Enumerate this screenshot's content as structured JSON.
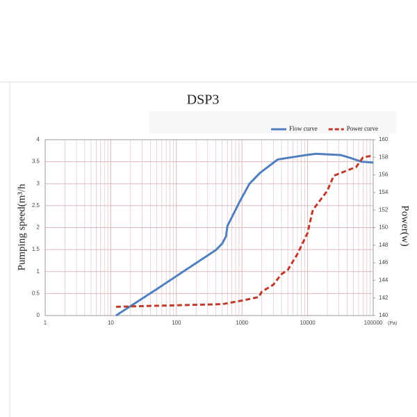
{
  "chart_data": {
    "type": "line",
    "title": "DSP3",
    "y_label": "Pumping speed(m³/h",
    "y2_label": "Power(w)",
    "x_unit": "(Pa)",
    "x_scale": "log",
    "grid": true,
    "grid_color": "#d9b8b8",
    "legend": "top-right",
    "xlim": [
      1,
      100000
    ],
    "xticks": [
      1,
      10,
      100,
      1000,
      10000,
      100000
    ],
    "ylim": [
      0,
      4
    ],
    "yticks": [
      0,
      0.5,
      1,
      1.5,
      2,
      2.5,
      3,
      3.5,
      4
    ],
    "y2lim": [
      140,
      160
    ],
    "y2ticks": [
      140,
      142,
      144,
      146,
      148,
      150,
      152,
      154,
      156,
      158,
      160
    ],
    "series": [
      {
        "name": "Flow curve",
        "color": "#4f7fbf",
        "style": "solid",
        "x": [
          12,
          50,
          150,
          400,
          500,
          570,
          600,
          930,
          1300,
          1900,
          3500,
          5700,
          9400,
          13500,
          32000,
          46000,
          66000,
          100000
        ],
        "values": [
          0,
          0.6,
          1.07,
          1.49,
          1.64,
          1.8,
          2.04,
          2.6,
          3.0,
          3.25,
          3.55,
          3.6,
          3.65,
          3.68,
          3.65,
          3.58,
          3.5,
          3.48
        ]
      },
      {
        "name": "Power curve",
        "color": "#c0392b",
        "style": "dashed",
        "axis": "y2",
        "x": [
          12,
          500,
          1000,
          1800,
          2000,
          3000,
          4000,
          5000,
          7000,
          10000,
          12000,
          20000,
          25000,
          40000,
          55000,
          70000,
          100000
        ],
        "values": [
          141,
          141.3,
          141.7,
          142.1,
          142.7,
          143.5,
          144.7,
          145.2,
          147,
          149.4,
          152,
          154.2,
          155.9,
          156.5,
          156.9,
          158,
          158.2
        ]
      }
    ]
  }
}
